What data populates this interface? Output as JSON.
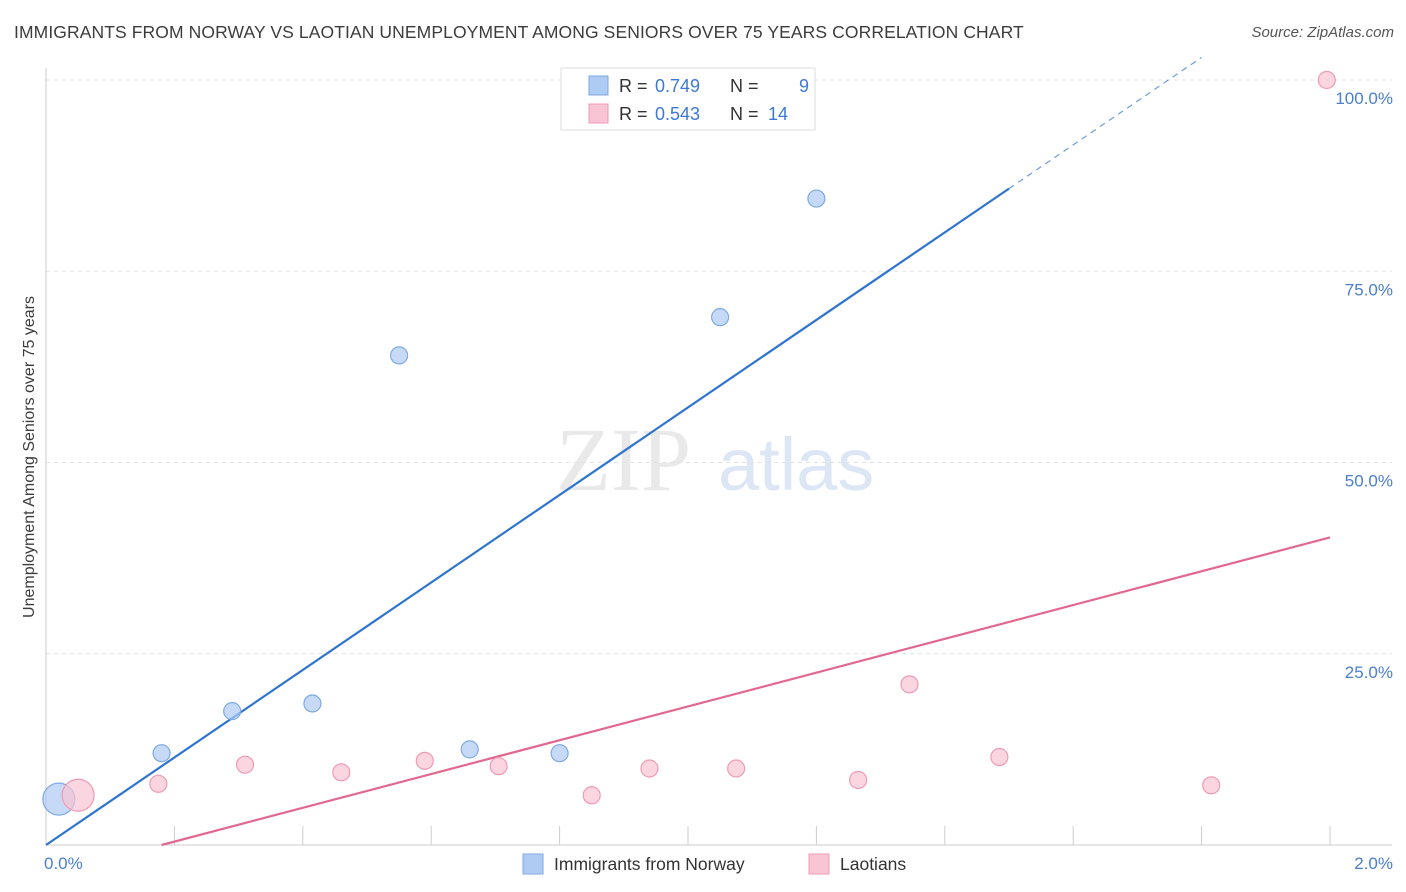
{
  "title": "IMMIGRANTS FROM NORWAY VS LAOTIAN UNEMPLOYMENT AMONG SENIORS OVER 75 YEARS CORRELATION CHART",
  "source": "Source: ZipAtlas.com",
  "watermark": {
    "zip": "ZIP",
    "atlas": "atlas"
  },
  "chart_data": {
    "type": "scatter",
    "title": "IMMIGRANTS FROM NORWAY VS LAOTIAN UNEMPLOYMENT AMONG SENIORS OVER 75 YEARS CORRELATION CHART",
    "xlabel": "",
    "ylabel": "Unemployment Among Seniors over 75 years",
    "xlim": [
      0,
      2.0
    ],
    "ylim": [
      0,
      100
    ],
    "x_tick_labels": [
      "0.0%",
      "2.0%"
    ],
    "y_ticks": [
      {
        "value": 25,
        "label": "25.0%"
      },
      {
        "value": 50,
        "label": "50.0%"
      },
      {
        "value": 75,
        "label": "75.0%"
      },
      {
        "value": 100,
        "label": "100.0%"
      }
    ],
    "legend_position": "top-center",
    "series": [
      {
        "name": "Immigrants from Norway",
        "color": "#aecbf3",
        "stroke": "#7eaae3",
        "line_color": "#2f74d0",
        "r_label": "R =",
        "r_value": "0.749",
        "n_label": "N =",
        "n_value": "9",
        "points": [
          {
            "x": 0.02,
            "y": 6.0,
            "big": true
          },
          {
            "x": 0.18,
            "y": 12.0
          },
          {
            "x": 0.29,
            "y": 17.5
          },
          {
            "x": 0.415,
            "y": 18.5
          },
          {
            "x": 0.55,
            "y": 64.0
          },
          {
            "x": 0.66,
            "y": 12.5
          },
          {
            "x": 0.8,
            "y": 12.0
          },
          {
            "x": 1.05,
            "y": 69.0
          },
          {
            "x": 1.2,
            "y": 84.5
          }
        ],
        "trend": {
          "x0": 0.0,
          "y0": 0.0,
          "x_solid_end": 1.5,
          "x_dash_end": 1.8,
          "slope": 57.2
        }
      },
      {
        "name": "Laotians",
        "color": "#f9c4d3",
        "stroke": "#ef9bb5",
        "line_color": "#e2688f",
        "r_label": "R =",
        "r_value": "0.543",
        "n_label": "N =",
        "n_value": "14",
        "points": [
          {
            "x": 0.05,
            "y": 6.5,
            "big": true
          },
          {
            "x": 0.175,
            "y": 8.0
          },
          {
            "x": 0.31,
            "y": 10.5
          },
          {
            "x": 0.46,
            "y": 9.5
          },
          {
            "x": 0.59,
            "y": 11.0
          },
          {
            "x": 0.705,
            "y": 10.3
          },
          {
            "x": 0.85,
            "y": 6.5
          },
          {
            "x": 0.94,
            "y": 10.0
          },
          {
            "x": 1.075,
            "y": 10.0
          },
          {
            "x": 1.265,
            "y": 8.5
          },
          {
            "x": 1.345,
            "y": 21.0
          },
          {
            "x": 1.485,
            "y": 11.5
          },
          {
            "x": 1.815,
            "y": 7.8
          },
          {
            "x": 1.995,
            "y": 100.0
          }
        ],
        "trend": {
          "x0": 0.18,
          "y0": 0.0,
          "x1": 2.0,
          "y1": 40.2
        }
      }
    ]
  }
}
